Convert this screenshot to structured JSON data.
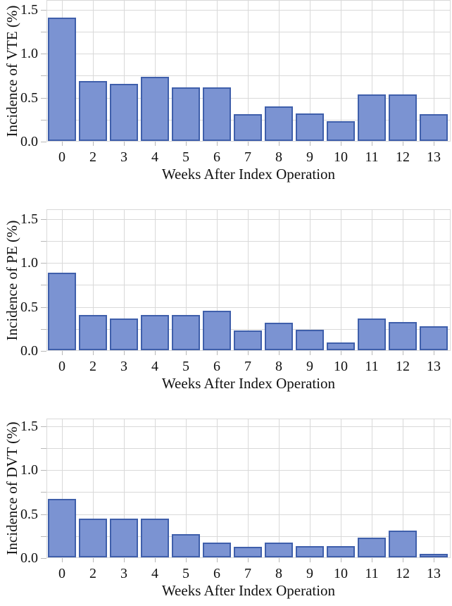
{
  "figure": {
    "background": "#ffffff",
    "bar_fill": "#7b93d2",
    "bar_border": "#3f5fab",
    "grid_color": "#d9d9d9",
    "tick_color": "#b8b8b8",
    "text_color": "#111111"
  },
  "chart_data": [
    {
      "id": "vte",
      "type": "bar",
      "title": "",
      "ylabel": "Incidence of VTE (%)",
      "xlabel": "Weeks After Index Operation",
      "categories": [
        "0",
        "2",
        "3",
        "4",
        "5",
        "6",
        "7",
        "8",
        "9",
        "10",
        "11",
        "12",
        "13"
      ],
      "values": [
        1.4,
        0.68,
        0.65,
        0.73,
        0.61,
        0.61,
        0.3,
        0.39,
        0.31,
        0.22,
        0.53,
        0.53,
        0.3
      ],
      "ylim": [
        0,
        1.6
      ],
      "yticks": [
        0,
        0.25,
        0.5,
        0.75,
        1.0,
        1.25,
        1.5
      ],
      "ytick_labels": [
        "0.0",
        "0.5",
        "1.0",
        "1.5"
      ],
      "ytick_label_values": [
        0,
        0.5,
        1.0,
        1.5
      ],
      "grid": true,
      "legend": false
    },
    {
      "id": "pe",
      "type": "bar",
      "title": "",
      "ylabel": "Incidence of PE (%)",
      "xlabel": "Weeks After Index Operation",
      "categories": [
        "0",
        "2",
        "3",
        "4",
        "5",
        "6",
        "7",
        "8",
        "9",
        "10",
        "11",
        "12",
        "13"
      ],
      "values": [
        0.88,
        0.4,
        0.36,
        0.4,
        0.4,
        0.45,
        0.22,
        0.31,
        0.23,
        0.09,
        0.36,
        0.32,
        0.27
      ],
      "ylim": [
        0,
        1.6
      ],
      "yticks": [
        0,
        0.25,
        0.5,
        0.75,
        1.0,
        1.25,
        1.5
      ],
      "ytick_labels": [
        "0.0",
        "0.5",
        "1.0",
        "1.5"
      ],
      "ytick_label_values": [
        0,
        0.5,
        1.0,
        1.5
      ],
      "grid": true,
      "legend": false
    },
    {
      "id": "dvt",
      "type": "bar",
      "title": "",
      "ylabel": "Incidence of DVT (%)",
      "xlabel": "Weeks After Index Operation",
      "categories": [
        "0",
        "2",
        "3",
        "4",
        "5",
        "6",
        "7",
        "8",
        "9",
        "10",
        "11",
        "12",
        "13"
      ],
      "values": [
        0.66,
        0.44,
        0.44,
        0.44,
        0.26,
        0.17,
        0.12,
        0.17,
        0.13,
        0.13,
        0.22,
        0.3,
        0.04
      ],
      "ylim": [
        0,
        1.6
      ],
      "yticks": [
        0,
        0.25,
        0.5,
        0.75,
        1.0,
        1.25,
        1.5
      ],
      "ytick_labels": [
        "0.0",
        "0.5",
        "1.0",
        "1.5"
      ],
      "ytick_label_values": [
        0,
        0.5,
        1.0,
        1.5
      ],
      "grid": true,
      "legend": false
    }
  ]
}
